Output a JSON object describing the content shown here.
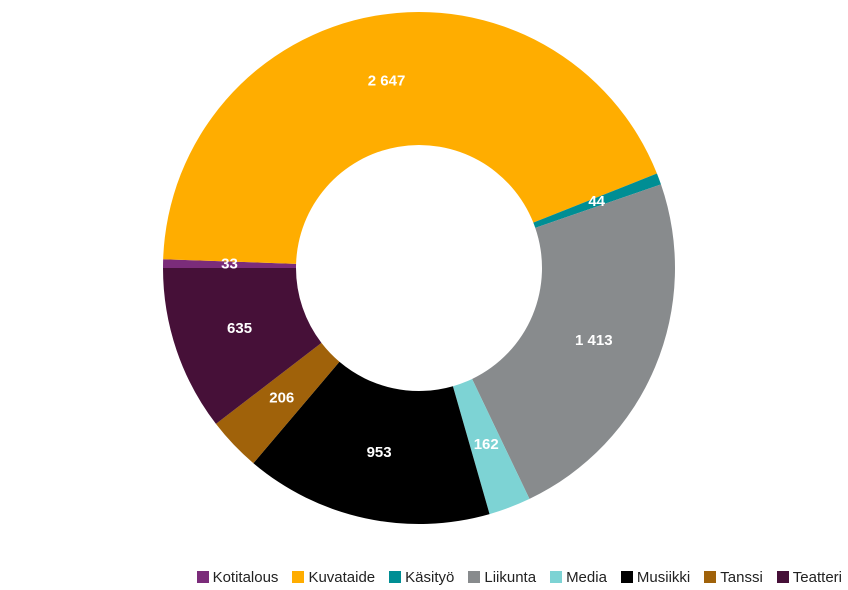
{
  "chart_data": {
    "type": "donut",
    "categories": [
      "Kotitalous",
      "Kuvataide",
      "Käsityö",
      "Liikunta",
      "Media",
      "Musiikki",
      "Tanssi",
      "Teatteri"
    ],
    "values": [
      33,
      2647,
      44,
      1413,
      162,
      953,
      206,
      635
    ],
    "value_labels": [
      "33",
      "2 647",
      "44",
      "1 413",
      "162",
      "953",
      "206",
      "635"
    ],
    "colors": [
      "#7b2c7a",
      "#ffad00",
      "#008e94",
      "#888b8d",
      "#7dd3d4",
      "#000000",
      "#a0620a",
      "#461038"
    ],
    "legend": "bottom"
  }
}
